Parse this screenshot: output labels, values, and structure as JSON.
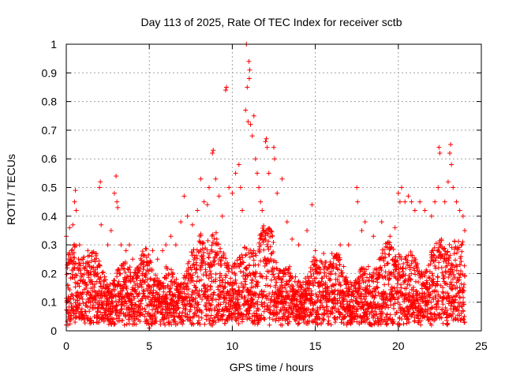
{
  "chart_data": {
    "type": "scatter",
    "title": "Day 113 of 2025, Rate Of TEC Index for receiver sctb",
    "xlabel": "GPS time / hours",
    "ylabel": "ROTI / TECUs",
    "xlim": [
      0,
      25
    ],
    "ylim": [
      0,
      1
    ],
    "xticks": [
      0,
      5,
      10,
      15,
      20,
      25
    ],
    "yticks": [
      0,
      0.1,
      0.2,
      0.3,
      0.4,
      0.5,
      0.6,
      0.7,
      0.8,
      0.9,
      1
    ],
    "xtick_labels": [
      "0",
      "5",
      "10",
      "15",
      "20",
      "25"
    ],
    "ytick_labels": [
      "0",
      "0.1",
      "0.2",
      "0.3",
      "0.4",
      "0.5",
      "0.6",
      "0.7",
      "0.8",
      "0.9",
      "1"
    ],
    "grid": true,
    "marker": "+",
    "series": [
      {
        "name": "ROTI",
        "color": "#ff0000",
        "envelope_note": "dense band of points between approximately 0.02 and 0.3 TECUs across 0-24 h",
        "points": [
          [
            0.0,
            0.33
          ],
          [
            0.2,
            0.36
          ],
          [
            0.4,
            0.37
          ],
          [
            0.5,
            0.45
          ],
          [
            0.55,
            0.49
          ],
          [
            0.6,
            0.42
          ],
          [
            0.8,
            0.3
          ],
          [
            1.0,
            0.25
          ],
          [
            1.3,
            0.28
          ],
          [
            1.5,
            0.22
          ],
          [
            1.8,
            0.27
          ],
          [
            2.0,
            0.5
          ],
          [
            2.05,
            0.52
          ],
          [
            2.1,
            0.37
          ],
          [
            2.5,
            0.3
          ],
          [
            2.7,
            0.35
          ],
          [
            2.9,
            0.48
          ],
          [
            3.0,
            0.54
          ],
          [
            3.05,
            0.45
          ],
          [
            3.1,
            0.43
          ],
          [
            3.3,
            0.3
          ],
          [
            3.6,
            0.28
          ],
          [
            3.8,
            0.3
          ],
          [
            4.0,
            0.25
          ],
          [
            4.3,
            0.22
          ],
          [
            4.6,
            0.2
          ],
          [
            4.9,
            0.23
          ],
          [
            5.2,
            0.28
          ],
          [
            5.5,
            0.25
          ],
          [
            5.8,
            0.28
          ],
          [
            6.0,
            0.3
          ],
          [
            6.3,
            0.33
          ],
          [
            6.6,
            0.3
          ],
          [
            6.9,
            0.38
          ],
          [
            7.1,
            0.47
          ],
          [
            7.3,
            0.4
          ],
          [
            7.6,
            0.37
          ],
          [
            7.9,
            0.42
          ],
          [
            8.1,
            0.53
          ],
          [
            8.3,
            0.45
          ],
          [
            8.5,
            0.44
          ],
          [
            8.6,
            0.5
          ],
          [
            8.8,
            0.62
          ],
          [
            8.85,
            0.63
          ],
          [
            9.0,
            0.53
          ],
          [
            9.2,
            0.47
          ],
          [
            9.4,
            0.4
          ],
          [
            9.6,
            0.84
          ],
          [
            9.65,
            0.85
          ],
          [
            9.8,
            0.5
          ],
          [
            10.0,
            0.48
          ],
          [
            10.2,
            0.55
          ],
          [
            10.4,
            0.58
          ],
          [
            10.5,
            0.5
          ],
          [
            10.6,
            0.42
          ],
          [
            10.8,
            0.77
          ],
          [
            10.85,
            1.0
          ],
          [
            10.9,
            0.85
          ],
          [
            10.95,
            0.73
          ],
          [
            11.0,
            0.94
          ],
          [
            11.02,
            0.88
          ],
          [
            11.05,
            0.91
          ],
          [
            11.1,
            0.72
          ],
          [
            11.2,
            0.68
          ],
          [
            11.3,
            0.75
          ],
          [
            11.4,
            0.6
          ],
          [
            11.5,
            0.55
          ],
          [
            11.6,
            0.5
          ],
          [
            11.7,
            0.45
          ],
          [
            11.8,
            0.42
          ],
          [
            12.0,
            0.66
          ],
          [
            12.05,
            0.67
          ],
          [
            12.1,
            0.64
          ],
          [
            12.2,
            0.55
          ],
          [
            12.5,
            0.64
          ],
          [
            12.55,
            0.6
          ],
          [
            12.7,
            0.48
          ],
          [
            13.0,
            0.53
          ],
          [
            13.3,
            0.38
          ],
          [
            13.6,
            0.32
          ],
          [
            14.0,
            0.3
          ],
          [
            14.5,
            0.35
          ],
          [
            14.8,
            0.44
          ],
          [
            15.0,
            0.28
          ],
          [
            15.5,
            0.27
          ],
          [
            16.0,
            0.27
          ],
          [
            16.5,
            0.3
          ],
          [
            17.0,
            0.3
          ],
          [
            17.5,
            0.5
          ],
          [
            17.55,
            0.45
          ],
          [
            17.8,
            0.35
          ],
          [
            18.0,
            0.38
          ],
          [
            18.5,
            0.33
          ],
          [
            19.0,
            0.38
          ],
          [
            19.5,
            0.33
          ],
          [
            19.8,
            0.36
          ],
          [
            20.0,
            0.48
          ],
          [
            20.1,
            0.45
          ],
          [
            20.2,
            0.5
          ],
          [
            20.4,
            0.45
          ],
          [
            20.6,
            0.47
          ],
          [
            20.8,
            0.45
          ],
          [
            21.0,
            0.42
          ],
          [
            21.3,
            0.45
          ],
          [
            21.6,
            0.42
          ],
          [
            22.0,
            0.4
          ],
          [
            22.2,
            0.45
          ],
          [
            22.4,
            0.5
          ],
          [
            22.45,
            0.64
          ],
          [
            22.5,
            0.62
          ],
          [
            22.8,
            0.45
          ],
          [
            23.0,
            0.52
          ],
          [
            23.1,
            0.62
          ],
          [
            23.15,
            0.65
          ],
          [
            23.2,
            0.58
          ],
          [
            23.3,
            0.5
          ],
          [
            23.5,
            0.45
          ],
          [
            23.7,
            0.42
          ],
          [
            23.9,
            0.4
          ],
          [
            24.0,
            0.35
          ],
          [
            0.1,
            0.02
          ],
          [
            3.5,
            0.02
          ],
          [
            5.0,
            0.01
          ],
          [
            9.0,
            0.03
          ],
          [
            13.0,
            0.02
          ],
          [
            15.0,
            0.03
          ],
          [
            18.0,
            0.03
          ],
          [
            20.5,
            0.04
          ],
          [
            22.0,
            0.02
          ],
          [
            24.0,
            0.03
          ]
        ]
      }
    ]
  }
}
